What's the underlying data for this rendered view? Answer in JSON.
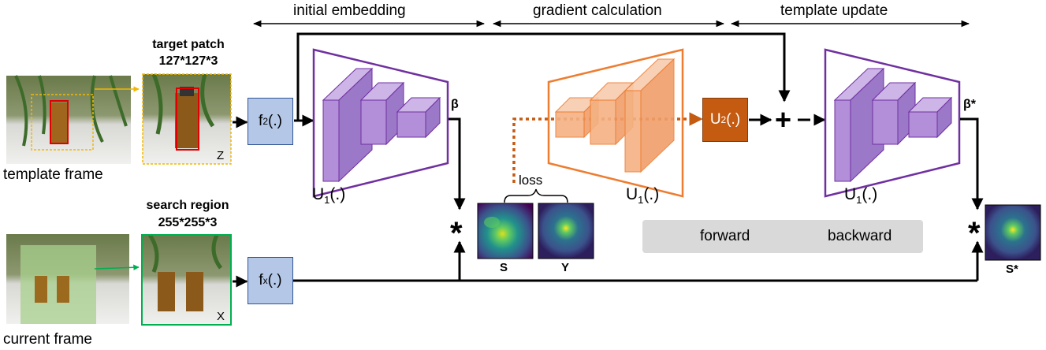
{
  "phases": {
    "initial_embedding": "initial embedding",
    "gradient_calculation": "gradient calculation",
    "template_update": "template update"
  },
  "frames": {
    "template_frame": "template frame",
    "current_frame": "current frame"
  },
  "patches": {
    "target_title": "target patch",
    "target_size": "127*127*3",
    "target_var": "Z",
    "search_title": "search region",
    "search_size": "255*255*3",
    "search_var": "X"
  },
  "blocks": {
    "f2_main": "f",
    "f2_sub": "2",
    "fx_main": "f",
    "fx_sub": "x",
    "u2_main": "U",
    "u2_sub": "2",
    "u1_main": "U",
    "u1_sub": "1",
    "args": "(.)"
  },
  "symbols": {
    "beta": "β",
    "beta_star": "β*",
    "star": "*",
    "plus": "+"
  },
  "maps": {
    "loss": "loss",
    "s": "S",
    "y": "Y",
    "s_star": "S*"
  },
  "legend": {
    "forward": "forward",
    "backward": "backward"
  },
  "colors": {
    "purple": "#7030a0",
    "purple_fill": "#b28fd8",
    "orange": "#ed7d31",
    "orange_fill": "#f4b183",
    "backward": "#c55a11",
    "f_box": "#b4c7e7",
    "u2_box": "#c55a11",
    "target_box": "#f2b705",
    "search_box": "#00b050",
    "object_box": "#e00000"
  }
}
